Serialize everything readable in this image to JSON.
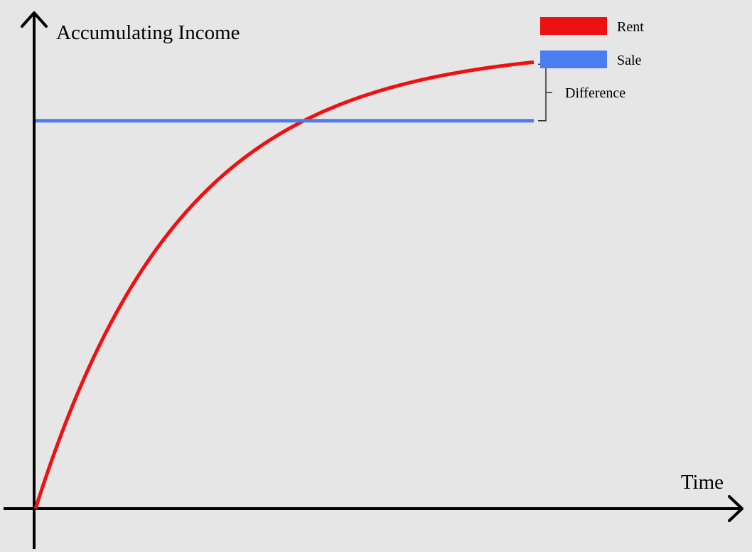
{
  "chart_data": {
    "type": "line",
    "title": "",
    "ylabel": "Accumulating Income",
    "xlabel": "Time",
    "grid": false,
    "legend_position": "top-right",
    "x_ticks": false,
    "y_ticks": false,
    "x_range": [
      0,
      1
    ],
    "y_range": [
      0,
      1
    ],
    "series": [
      {
        "name": "Rent",
        "color": "#ee1111",
        "shape": "saturating-curve",
        "start_value": 0,
        "end_value": 0.99
      },
      {
        "name": "Sale",
        "color": "#4a7ef0",
        "shape": "constant",
        "value": 0.86
      }
    ],
    "annotations": [
      {
        "label": "Difference",
        "type": "bracket",
        "between_series": [
          "Rent",
          "Sale"
        ],
        "at": "end"
      }
    ]
  }
}
